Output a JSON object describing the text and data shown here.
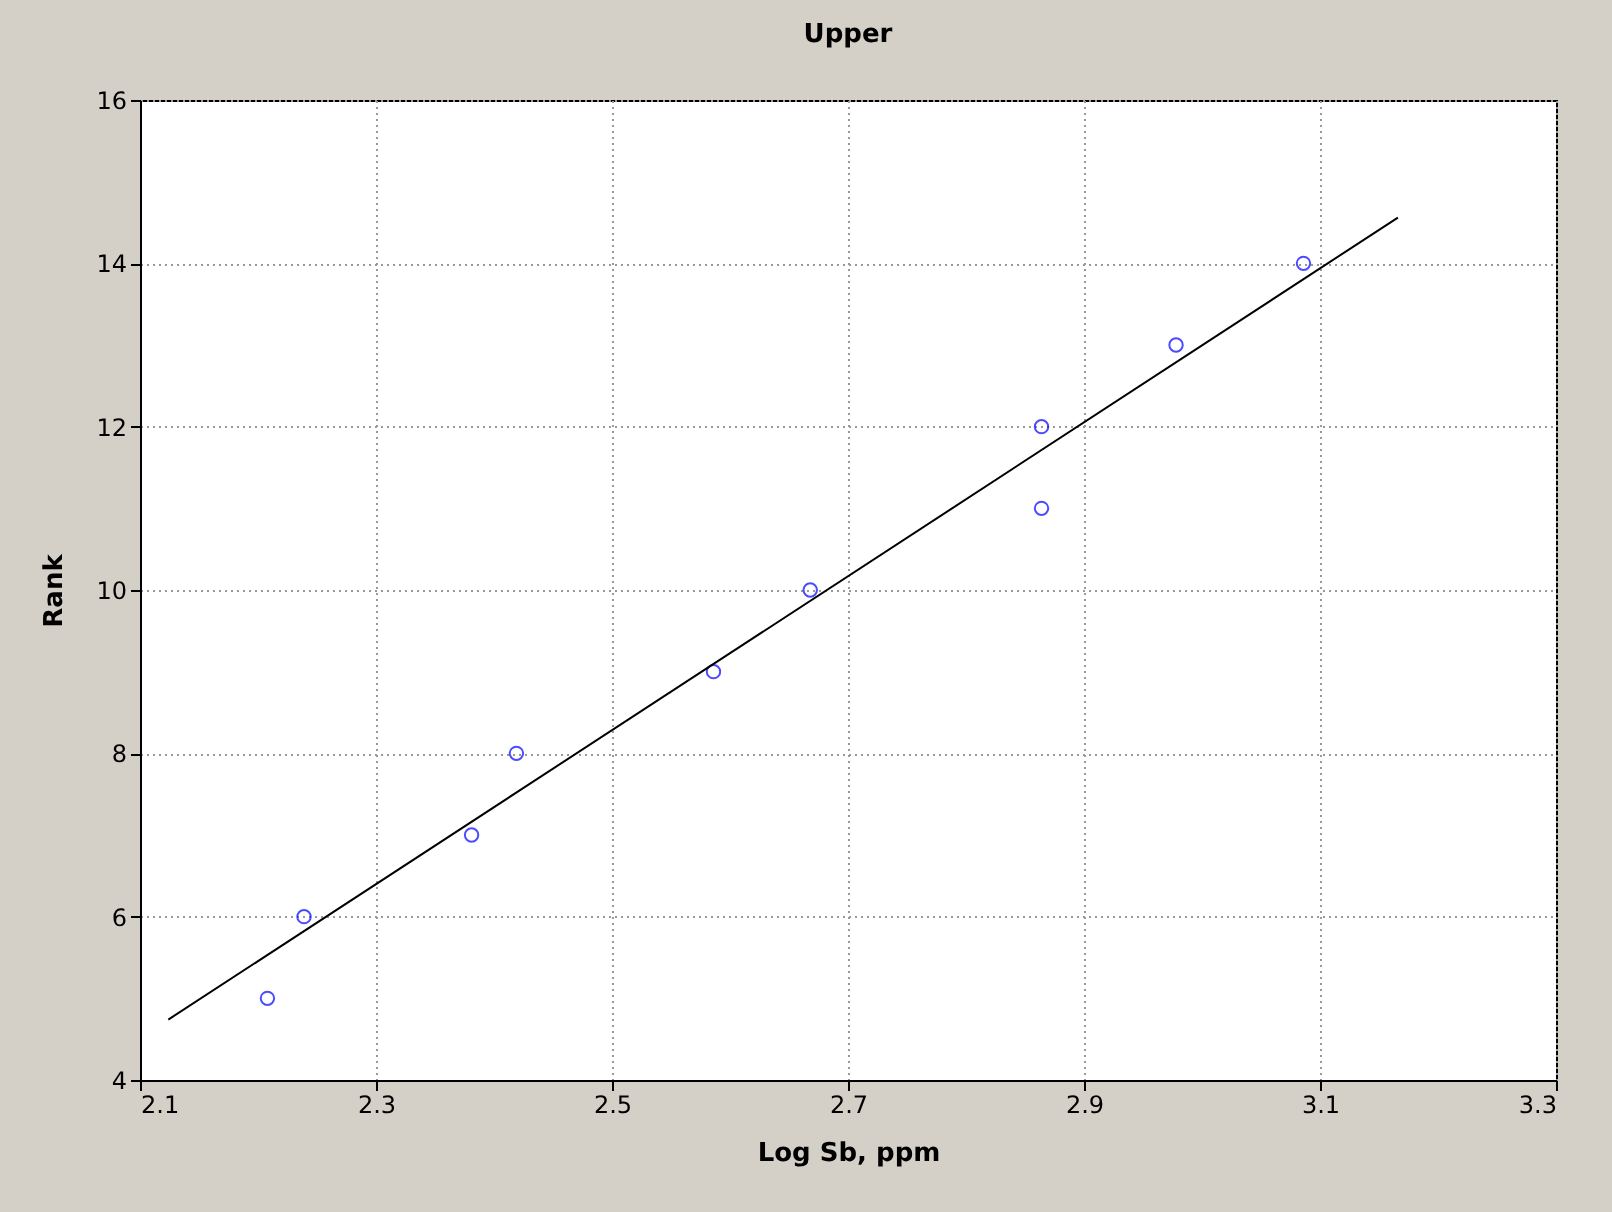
{
  "chart_data": {
    "type": "scatter",
    "title": "Upper",
    "xlabel": "Log Sb, ppm",
    "ylabel": "Rank",
    "xlim": [
      2.1,
      3.3
    ],
    "ylim": [
      4,
      16
    ],
    "xticks": [
      2.1,
      2.3,
      2.5,
      2.7,
      2.9,
      3.1,
      3.3
    ],
    "yticks": [
      4,
      6,
      8,
      10,
      12,
      14,
      16
    ],
    "grid": true,
    "legend": false,
    "series": [
      {
        "type": "scatter",
        "color": "#0000ff",
        "marker": "circle",
        "x": [
          2.208,
          2.239,
          2.381,
          2.419,
          2.586,
          2.668,
          2.864,
          2.864,
          2.978,
          3.086
        ],
        "values": [
          5,
          6,
          7,
          8,
          9,
          10,
          11,
          12,
          13,
          14
        ]
      },
      {
        "type": "line",
        "color": "#000000",
        "marker": "none",
        "line_style": "solid",
        "x": [
          2.124,
          3.166
        ],
        "values": [
          4.74,
          14.56
        ]
      }
    ]
  }
}
